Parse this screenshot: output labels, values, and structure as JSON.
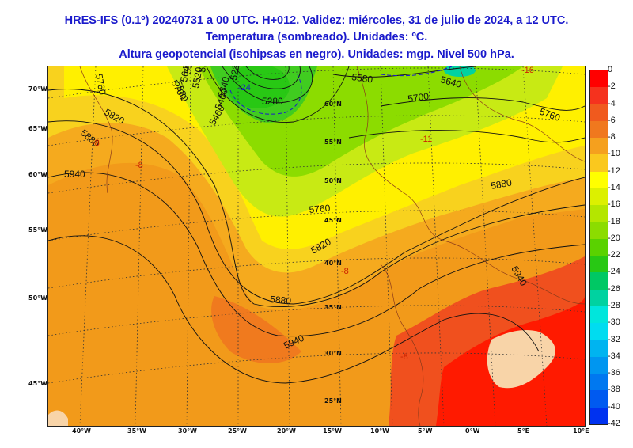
{
  "titles": {
    "line1": "HRES-IFS (0.1º) 20240731 a 00 UTC. H+012. Validez: miércoles, 31 de julio de 2024, a 12 UTC.",
    "line2": "Temperatura (sombreado). Unidades: ºC.",
    "line3": "Altura geopotencial (isohipsas en negro). Unidades: mgp. Nivel 500 hPa."
  },
  "colorbar": {
    "labels": [
      "0",
      "-2",
      "-4",
      "-6",
      "-8",
      "-10",
      "-12",
      "-14",
      "-16",
      "-18",
      "-20",
      "-22",
      "-24",
      "-26",
      "-28",
      "-30",
      "-32",
      "-34",
      "-36",
      "-38",
      "-40",
      "-42"
    ],
    "colors": [
      "#ff0000",
      "#f5321e",
      "#f05a1e",
      "#f0781e",
      "#f5a01e",
      "#fac81e",
      "#ffff00",
      "#dcf000",
      "#b4e600",
      "#8cdc00",
      "#5ad200",
      "#28c814",
      "#00c864",
      "#00d2a0",
      "#00e6dc",
      "#00dcf0",
      "#00b4f0",
      "#0096f0",
      "#0078f0",
      "#005af0",
      "#0032f0"
    ]
  },
  "lon_labels": [
    "40°W",
    "35°W",
    "30°W",
    "25°W",
    "20°W",
    "15°W",
    "10°W",
    "5°W",
    "0°W",
    "5°E",
    "10°E"
  ],
  "lat_labels_left": [
    "70°W",
    "65°W",
    "60°W",
    "55°W",
    "50°W",
    "45°W"
  ],
  "lat_labels_inner": [
    "60°N",
    "55°N",
    "50°N",
    "45°N",
    "40°N",
    "35°N",
    "30°N",
    "25°N"
  ],
  "contour_labels": [
    "5580",
    "5640",
    "5580",
    "5700",
    "5760",
    "5820",
    "5880",
    "5940",
    "5880",
    "5760",
    "5820",
    "5880",
    "5940",
    "5940",
    "5700",
    "5760",
    "5280",
    "5220",
    "5340",
    "5400",
    "5460",
    "5520",
    "5640",
    "5580",
    "5520"
  ],
  "temp_labels": [
    "-24",
    "-16",
    "-8",
    "-8",
    "-8",
    "-8",
    "-11"
  ],
  "colors": {
    "title": "#1a1acc",
    "background_warm": "#f29a1a",
    "hot": "#f0501e",
    "very_hot": "#ff1a00",
    "land_pale": "#f8d4a8"
  }
}
